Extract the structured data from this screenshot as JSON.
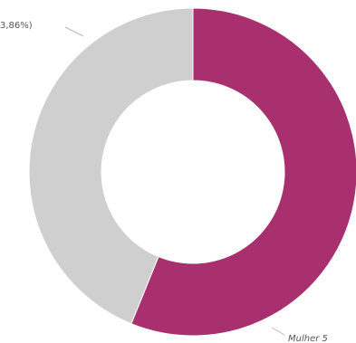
{
  "chart_data": {
    "type": "donut",
    "categories": [
      "Mulher 5",
      "3,86%)"
    ],
    "values": [
      56.14,
      43.86
    ],
    "colors": [
      "#a8306f",
      "#cfcfcf"
    ]
  }
}
